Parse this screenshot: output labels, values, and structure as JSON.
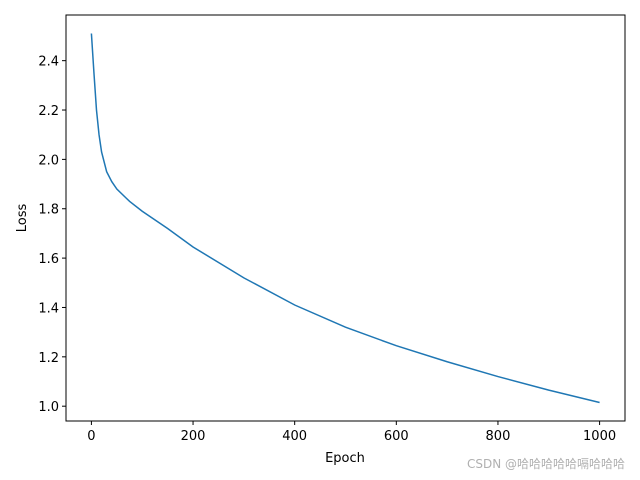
{
  "chart_data": {
    "type": "line",
    "xlabel": "Epoch",
    "ylabel": "Loss",
    "x": [
      0,
      5,
      10,
      15,
      20,
      30,
      40,
      50,
      75,
      100,
      150,
      200,
      300,
      400,
      500,
      600,
      700,
      800,
      900,
      1000
    ],
    "series": [
      {
        "name": "Loss",
        "color": "#1f77b4",
        "values": [
          2.51,
          2.35,
          2.2,
          2.1,
          2.03,
          1.95,
          1.91,
          1.88,
          1.83,
          1.79,
          1.72,
          1.645,
          1.52,
          1.41,
          1.32,
          1.245,
          1.18,
          1.12,
          1.065,
          1.015
        ]
      }
    ],
    "xlim": [
      -50,
      1050
    ],
    "xticks": [
      0,
      200,
      400,
      600,
      800,
      1000
    ],
    "ylim": [
      0.94,
      2.585
    ],
    "yticks": [
      {
        "value": 1.0,
        "label": "1.0"
      },
      1.2,
      1.4,
      1.6,
      1.8,
      {
        "value": 2.0,
        "label": "2.0"
      },
      2.2,
      2.4
    ],
    "grid": false,
    "watermark": "CSDN @哈哈哈哈哈嗝哈哈哈"
  }
}
